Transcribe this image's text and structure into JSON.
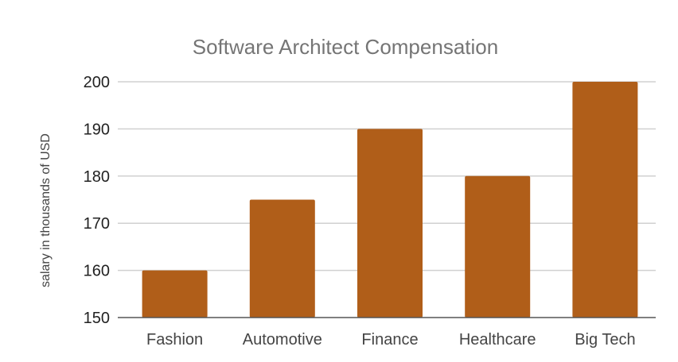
{
  "chart_data": {
    "type": "bar",
    "title": "Software Architect Compensation",
    "xlabel": "",
    "ylabel": "salary in thousands of USD",
    "categories": [
      "Fashion",
      "Automotive",
      "Finance",
      "Healthcare",
      "Big Tech"
    ],
    "values": [
      160,
      175,
      190,
      180,
      200
    ],
    "ylim": [
      150,
      200
    ],
    "yticks": [
      150,
      160,
      170,
      180,
      190,
      200
    ],
    "grid": true,
    "legend": "none",
    "colors": {
      "bar": "#B05E19",
      "grid": "#d0d0d0",
      "axis": "#555555"
    }
  }
}
